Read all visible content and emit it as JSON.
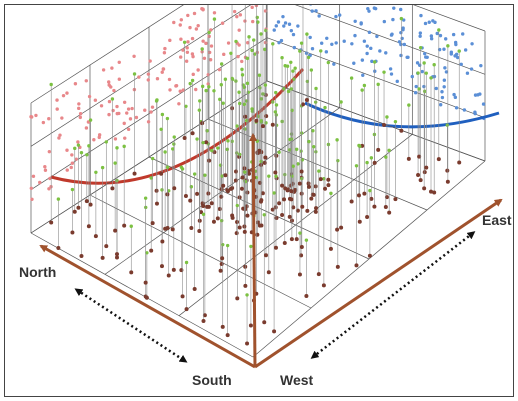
{
  "labels": {
    "north": "North",
    "south": "South",
    "west": "West",
    "east": "East"
  },
  "colors": {
    "axis": "#a0522d",
    "grid": "#555555",
    "stem": "#8c8c8c",
    "ground_point": "#7a3b2e",
    "top_point": "#7cc142",
    "north_wall_points": "#e8878a",
    "north_wall_trend": "#c0392b",
    "east_wall_points": "#5b8fd6",
    "east_wall_trend": "#1f5fbf",
    "extent_arrow": "#111111"
  }
}
